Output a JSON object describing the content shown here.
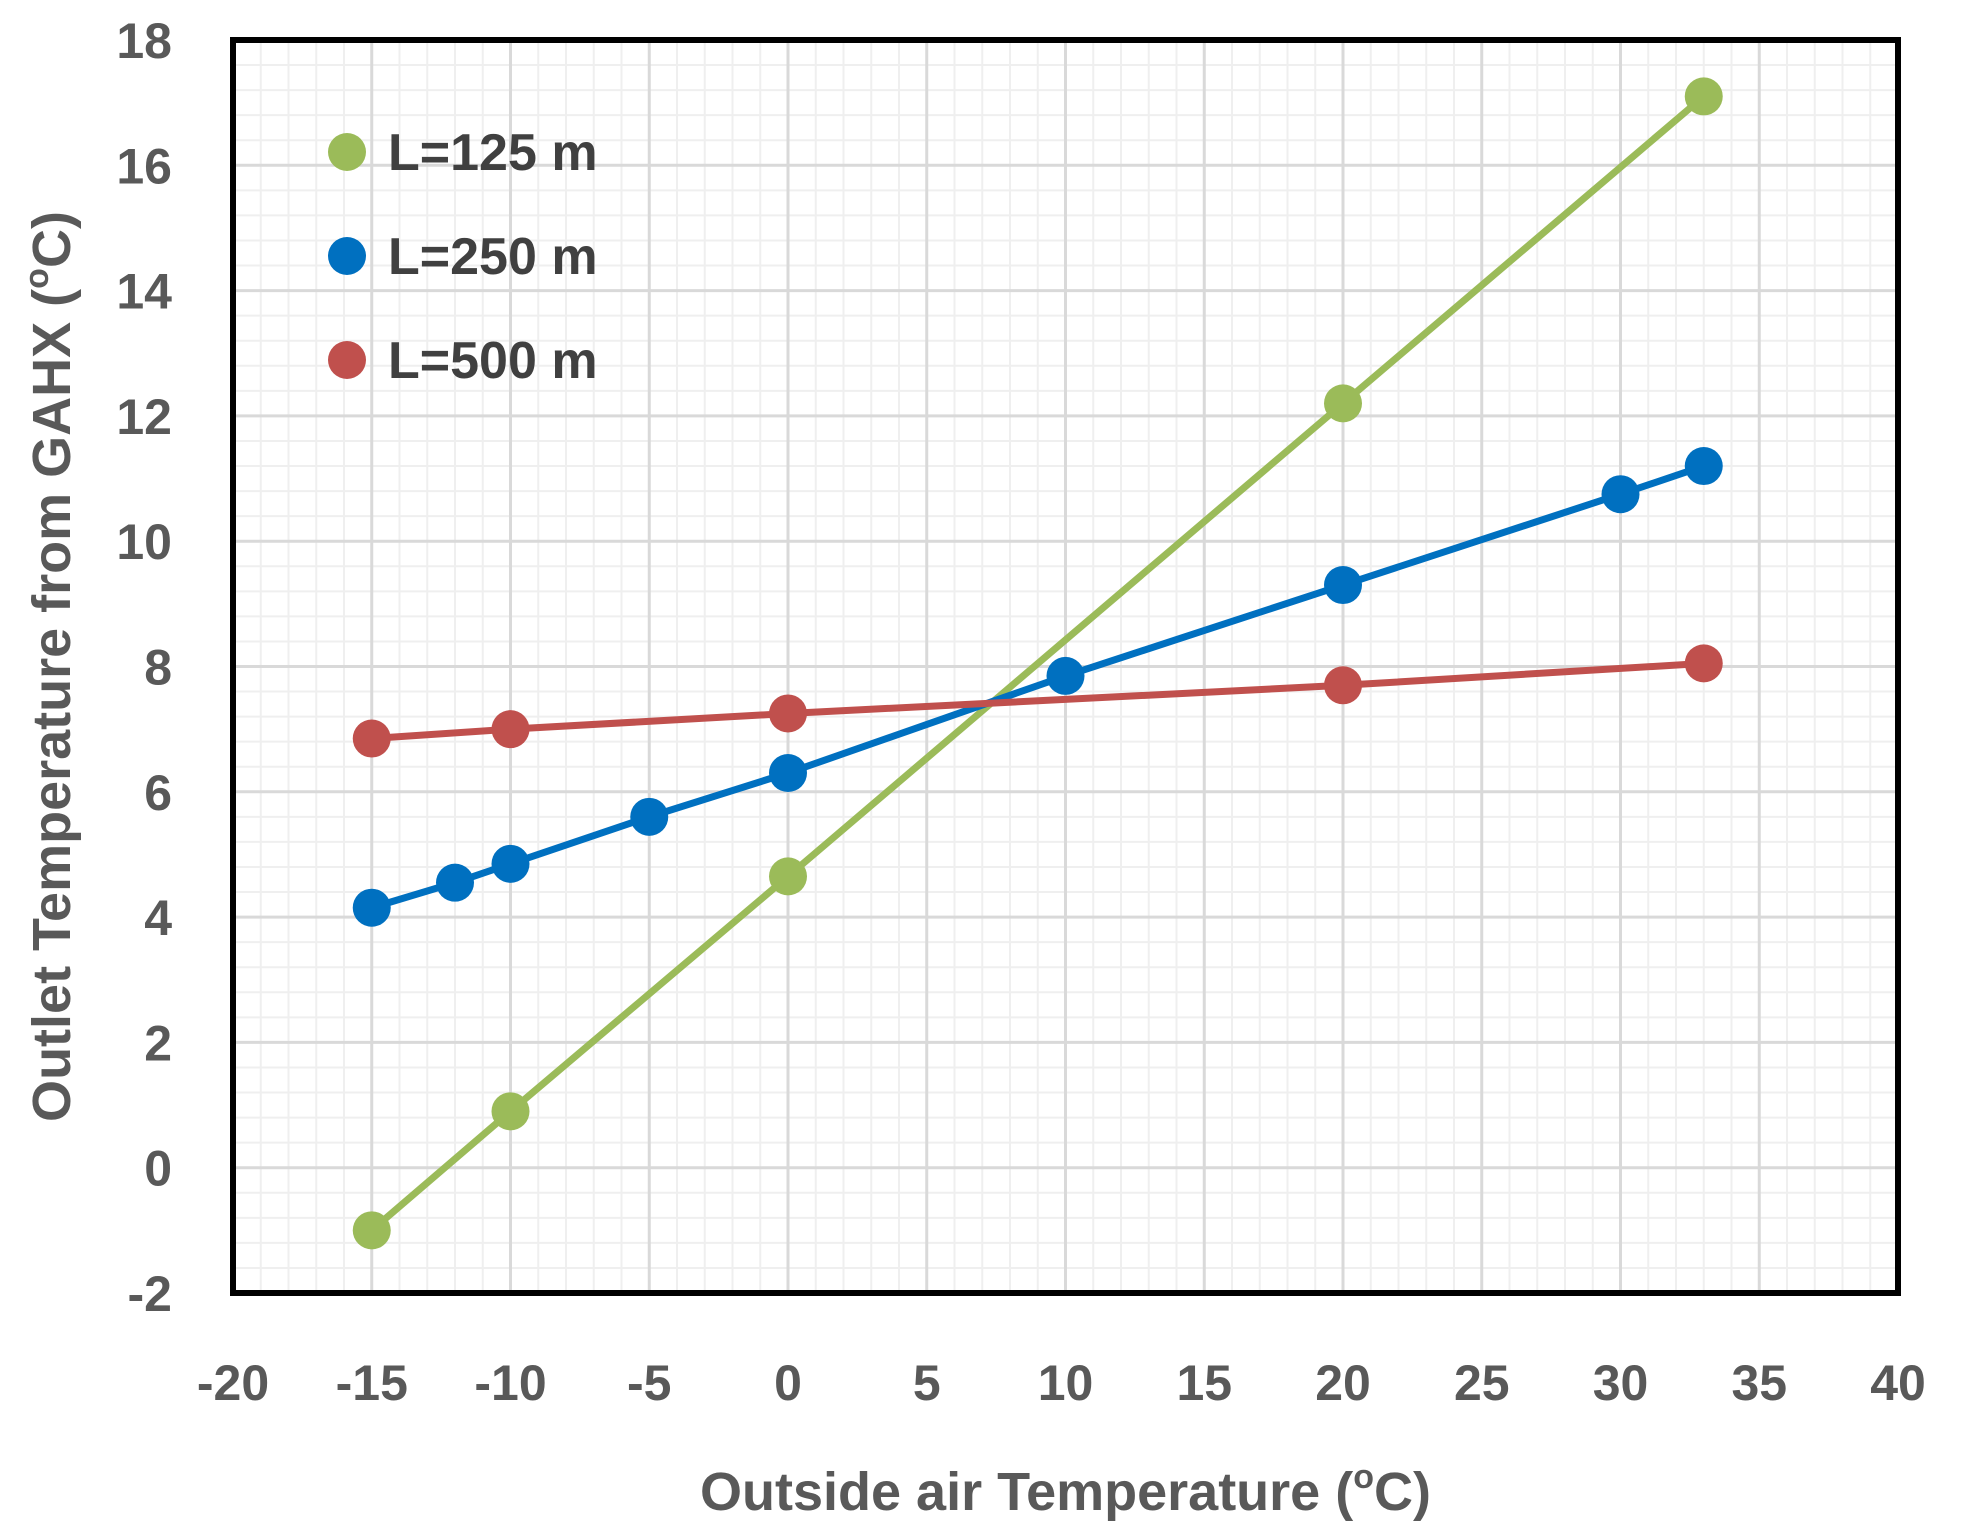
{
  "chart_data": {
    "type": "line",
    "title": "",
    "xlabel": "Outside air Temperature (",
    "xlabel_unit": "C)",
    "ylabel": "Outlet Temperature from GAHX (",
    "ylabel_unit": "C)",
    "degree_symbol": "o",
    "xlim": [
      -20,
      40
    ],
    "ylim": [
      -2,
      18
    ],
    "xticks": [
      -20,
      -15,
      -10,
      -5,
      0,
      5,
      10,
      15,
      20,
      25,
      30,
      35,
      40
    ],
    "yticks": [
      -2,
      0,
      2,
      4,
      6,
      8,
      10,
      12,
      14,
      16,
      18
    ],
    "grid": true,
    "legend_position": "top-left",
    "series": [
      {
        "name": "L=125 m",
        "color": "#9BBB59",
        "x": [
          -15,
          -10,
          0,
          20,
          33
        ],
        "y": [
          -1.0,
          0.9,
          4.65,
          12.2,
          17.1
        ]
      },
      {
        "name": "L=250 m",
        "color": "#0070C0",
        "x": [
          -15,
          -12,
          -10,
          -5,
          0,
          10,
          20,
          30,
          33
        ],
        "y": [
          4.15,
          4.55,
          4.85,
          5.6,
          6.3,
          7.85,
          9.3,
          10.75,
          11.2
        ]
      },
      {
        "name": "L=500 m",
        "color": "#C0504D",
        "x": [
          -15,
          -10,
          0,
          20,
          33
        ],
        "y": [
          6.85,
          7.0,
          7.25,
          7.7,
          8.05
        ]
      }
    ]
  }
}
